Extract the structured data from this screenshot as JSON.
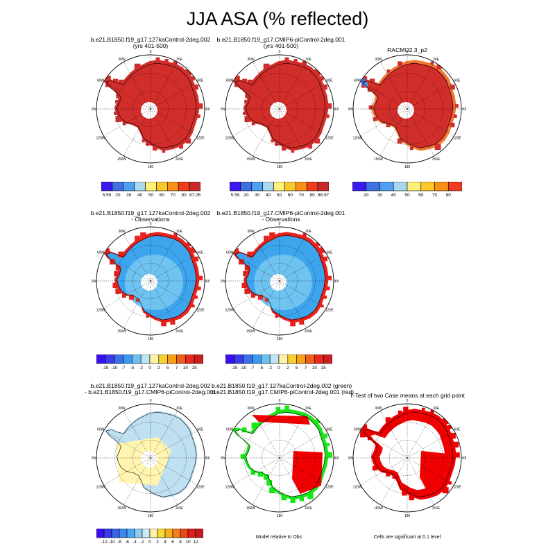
{
  "title": "JJA ASA (% reflected)",
  "panels": [
    {
      "id": "case1",
      "title_lines": [
        "b.e21.B1850.f19_g17.127kaControl-2deg.002",
        "(yrs 401-500)"
      ]
    },
    {
      "id": "case2",
      "title_lines": [
        "b.e21.B1850.f19_g17.CMIP6-piControl-2deg.001",
        "(yrs 401-500)"
      ]
    },
    {
      "id": "obs",
      "title_lines": [
        "RACMO2.3_p2"
      ]
    },
    {
      "id": "case1_minus_obs",
      "title_lines": [
        "b.e21.B1850.f19_g17.127kaControl-2deg.002",
        "- Observations"
      ]
    },
    {
      "id": "case2_minus_obs",
      "title_lines": [
        "b.e21.B1850.f19_g17.CMIP6-piControl-2deg.001",
        "- Observations"
      ]
    },
    {
      "id": "case1_minus_case2",
      "title_lines": [
        "b.e21.B1850.f19_g17.127kaControl-2deg.002",
        "- b.e21.B1850.f19_g17.CMIP6-piControl-2deg.001"
      ]
    },
    {
      "id": "model_rel_obs",
      "title_lines": [
        "b.e21.B1850.f19_g17.127kaControl-2deg.002 (green)",
        "b.e21.B1850.f19_g17.CMIP6-piControl-2deg.001 (red)"
      ]
    },
    {
      "id": "ttest",
      "title_lines": [
        "T-Test of two Case means at each grid point"
      ]
    }
  ],
  "map_labels": {
    "lon": [
      "0",
      "30E",
      "60E",
      "90E",
      "120E",
      "150E",
      "180",
      "150W",
      "120W",
      "90W",
      "60W",
      "30W"
    ]
  },
  "colorbars": {
    "abs1": {
      "labels": [
        "5.59",
        "20",
        "30",
        "40",
        "50",
        "60",
        "70",
        "80",
        "87.06"
      ],
      "colors": [
        "#3a1af0",
        "#3f6fe0",
        "#4fa0f0",
        "#a8d8f0",
        "#fff078",
        "#f8c828",
        "#f89018",
        "#f03c1c",
        "#c82828"
      ]
    },
    "abs2": {
      "labels": [
        "5.59",
        "20",
        "30",
        "40",
        "50",
        "60",
        "70",
        "80",
        "86.97"
      ],
      "colors": [
        "#3a1af0",
        "#3f6fe0",
        "#4fa0f0",
        "#a8d8f0",
        "#fff078",
        "#f8c828",
        "#f89018",
        "#f03c1c",
        "#c82828"
      ]
    },
    "abs3": {
      "labels": [
        "20",
        "30",
        "40",
        "50",
        "60",
        "70",
        "80"
      ],
      "colors": [
        "#3a1af0",
        "#3f6fe0",
        "#4fa0f0",
        "#a8d8f0",
        "#fff078",
        "#f8c828",
        "#f89018",
        "#f03c1c"
      ]
    },
    "diff_obs": {
      "labels": [
        "-15",
        "-10",
        "-7",
        "-5",
        "-2",
        "0",
        "2",
        "5",
        "7",
        "10",
        "15"
      ],
      "colors": [
        "#3a10f0",
        "#3a3ae8",
        "#3a70e8",
        "#3c98f0",
        "#6ec0f0",
        "#bfe4f4",
        "#fff2a8",
        "#f8d030",
        "#f8a018",
        "#f06018",
        "#e82a1c",
        "#c82020"
      ]
    },
    "diff_case": {
      "labels": [
        "-12",
        "-10",
        "-8",
        "-6",
        "-4",
        "-2",
        "0",
        "2",
        "4",
        "6",
        "8",
        "10",
        "12"
      ],
      "colors": [
        "#3a10f0",
        "#3a3ae8",
        "#3a60e8",
        "#3c88f0",
        "#4ca8f0",
        "#8cccf0",
        "#c8e8f4",
        "#fff2a8",
        "#f8d838",
        "#f8b020",
        "#f08018",
        "#e84818",
        "#e01c1c",
        "#c01c1c"
      ]
    }
  },
  "notes": {
    "model_rel_obs": "Model relative to Obs",
    "ttest": "Cells are significant at 0.1 level"
  },
  "fill_colors": {
    "abs": "#d12d2a",
    "abs_edge": "#f07830",
    "abs_blue": "#3f6fe0",
    "diff_obs": "#3da5ee",
    "diff_obs_inner": "#6fc3f0",
    "diff_obs_edge": "#e8221c",
    "case_diff_warm": "#fff4b0",
    "case_diff_cool": "#bfe0f0",
    "green": "#18e818",
    "red": "#f00000"
  }
}
